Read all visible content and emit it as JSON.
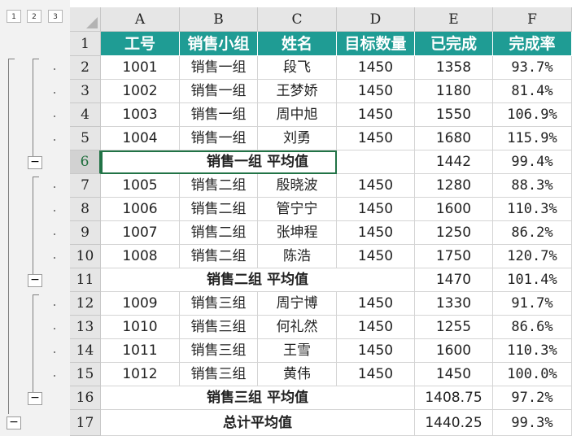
{
  "outline": {
    "levels": [
      "1",
      "2",
      "3"
    ],
    "collapse_symbol": "−"
  },
  "columns": [
    "A",
    "B",
    "C",
    "D",
    "E",
    "F"
  ],
  "rows": [
    {
      "num": "1",
      "type": "header",
      "cells": [
        "工号",
        "销售小组",
        "姓名",
        "目标数量",
        "已完成",
        "完成率"
      ]
    },
    {
      "num": "2",
      "type": "data",
      "cells": [
        "1001",
        "销售一组",
        "段飞",
        "1450",
        "1358",
        "93.7%"
      ]
    },
    {
      "num": "3",
      "type": "data",
      "cells": [
        "1002",
        "销售一组",
        "王梦娇",
        "1450",
        "1180",
        "81.4%"
      ]
    },
    {
      "num": "4",
      "type": "data",
      "cells": [
        "1003",
        "销售一组",
        "周中旭",
        "1450",
        "1550",
        "106.9%"
      ]
    },
    {
      "num": "5",
      "type": "data",
      "cells": [
        "1004",
        "销售一组",
        "刘勇",
        "1450",
        "1680",
        "115.9%"
      ]
    },
    {
      "num": "6",
      "type": "subtotal",
      "label": "销售一组 平均值",
      "e": "1442",
      "f": "99.4%"
    },
    {
      "num": "7",
      "type": "data",
      "cells": [
        "1005",
        "销售二组",
        "殷晓波",
        "1450",
        "1280",
        "88.3%"
      ]
    },
    {
      "num": "8",
      "type": "data",
      "cells": [
        "1006",
        "销售二组",
        "管宁宁",
        "1450",
        "1600",
        "110.3%"
      ]
    },
    {
      "num": "9",
      "type": "data",
      "cells": [
        "1007",
        "销售二组",
        "张坤程",
        "1450",
        "1250",
        "86.2%"
      ]
    },
    {
      "num": "10",
      "type": "data",
      "cells": [
        "1008",
        "销售二组",
        "陈浩",
        "1450",
        "1750",
        "120.7%"
      ]
    },
    {
      "num": "11",
      "type": "subtotal",
      "label": "销售二组 平均值",
      "e": "1470",
      "f": "101.4%"
    },
    {
      "num": "12",
      "type": "data",
      "cells": [
        "1009",
        "销售三组",
        "周宁博",
        "1450",
        "1330",
        "91.7%"
      ]
    },
    {
      "num": "13",
      "type": "data",
      "cells": [
        "1010",
        "销售三组",
        "何礼然",
        "1450",
        "1255",
        "86.6%"
      ]
    },
    {
      "num": "14",
      "type": "data",
      "cells": [
        "1011",
        "销售三组",
        "王雪",
        "1450",
        "1600",
        "110.3%"
      ]
    },
    {
      "num": "15",
      "type": "data",
      "cells": [
        "1012",
        "销售三组",
        "黄伟",
        "1450",
        "1450",
        "100.0%"
      ]
    },
    {
      "num": "16",
      "type": "subtotal",
      "label": "销售三组 平均值",
      "e": "1408.75",
      "f": "97.2%"
    },
    {
      "num": "17",
      "type": "total",
      "label": "总计平均值",
      "e": "1440.25",
      "f": "99.3%"
    }
  ],
  "colors": {
    "header_fill": "#1f9c94",
    "header_text": "#ffffff",
    "selection": "#217346"
  }
}
